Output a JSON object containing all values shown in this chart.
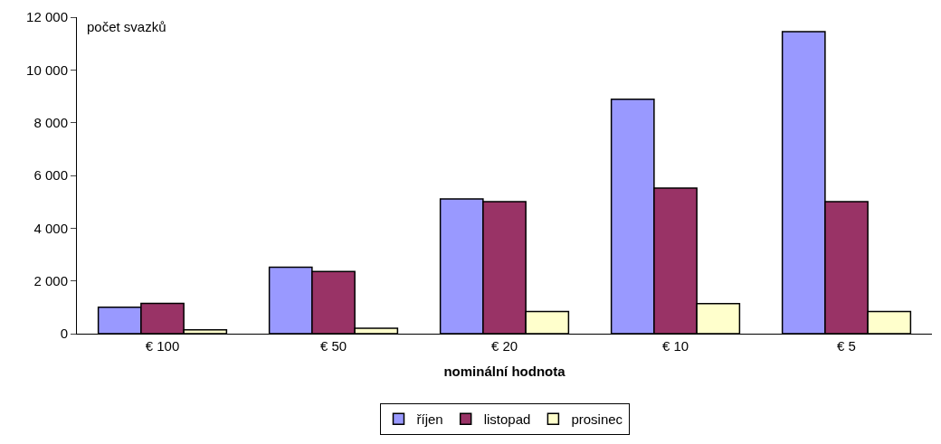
{
  "chart_data": {
    "type": "bar",
    "ylabel": "počet svazků",
    "xlabel": "nominální hodnota",
    "categories": [
      "€ 100",
      "€ 50",
      "€ 20",
      "€ 10",
      "€ 5"
    ],
    "series": [
      {
        "name": "říjen",
        "color": "#9999ff",
        "values": [
          1000,
          2520,
          5110,
          8890,
          11450
        ]
      },
      {
        "name": "listopad",
        "color": "#993366",
        "values": [
          1150,
          2360,
          5010,
          5520,
          5010
        ]
      },
      {
        "name": "prosinec",
        "color": "#ffffcc",
        "values": [
          150,
          210,
          840,
          1140,
          840
        ]
      }
    ],
    "ylim": [
      0,
      12000
    ],
    "yticks": [
      {
        "value": 0,
        "label": "0"
      },
      {
        "value": 2000,
        "label": "2 000"
      },
      {
        "value": 4000,
        "label": "4 000"
      },
      {
        "value": 6000,
        "label": "6 000"
      },
      {
        "value": 8000,
        "label": "8 000"
      },
      {
        "value": 10000,
        "label": "10 000"
      },
      {
        "value": 12000,
        "label": "12 000"
      }
    ],
    "legend": "bottom"
  }
}
